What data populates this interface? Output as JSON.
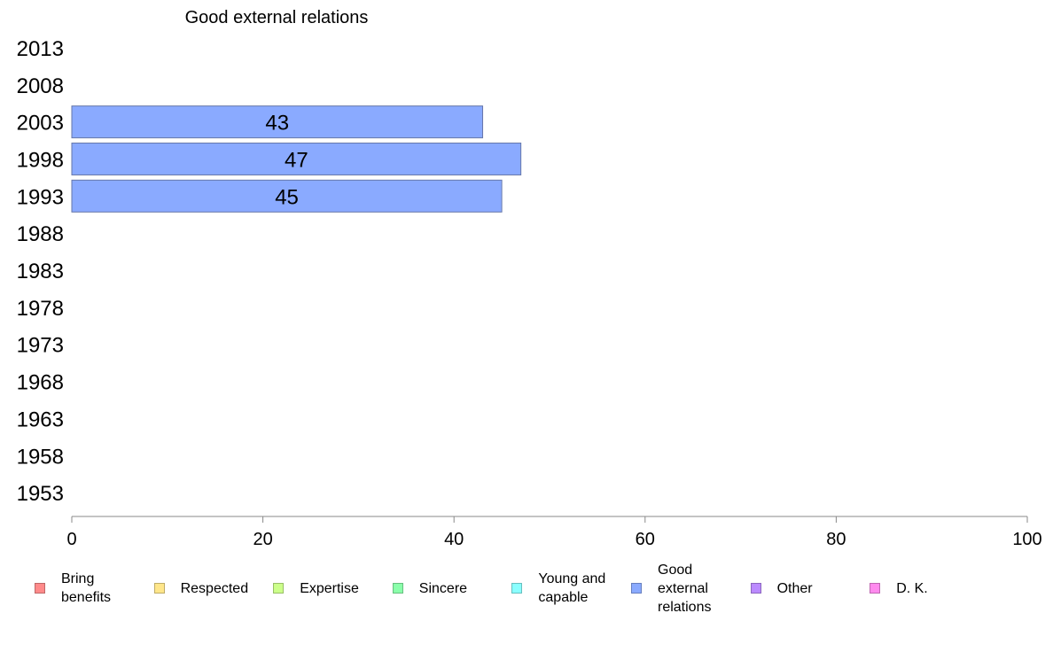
{
  "chart_data": {
    "type": "bar",
    "orientation": "horizontal",
    "title": "Good external relations",
    "categories": [
      "2013",
      "2008",
      "2003",
      "1998",
      "1993",
      "1988",
      "1983",
      "1978",
      "1973",
      "1968",
      "1963",
      "1958",
      "1953"
    ],
    "series": [
      {
        "name": "Good external relations",
        "color": "#8aaaff",
        "values": [
          null,
          null,
          43,
          47,
          45,
          null,
          null,
          null,
          null,
          null,
          null,
          null,
          null
        ]
      }
    ],
    "xlim": [
      0,
      100
    ],
    "xticks": [
      "0",
      "20",
      "40",
      "60",
      "80",
      "100"
    ],
    "grid": false,
    "legend_position": "bottom",
    "legend": [
      {
        "label": "Bring\nbenefits",
        "color": "#ff8a8a"
      },
      {
        "label": "Respected",
        "color": "#ffe68a"
      },
      {
        "label": "Expertise",
        "color": "#ccff8a"
      },
      {
        "label": "Sincere",
        "color": "#8affaa"
      },
      {
        "label": "Young and\ncapable",
        "color": "#8affff"
      },
      {
        "label": "Good\nexternal\nrelations",
        "color": "#8aaaff"
      },
      {
        "label": "Other",
        "color": "#bb8aff"
      },
      {
        "label": "D. K.",
        "color": "#ff8aee"
      }
    ]
  }
}
